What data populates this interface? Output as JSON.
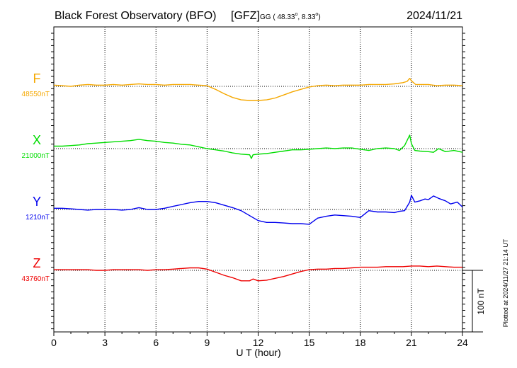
{
  "header": {
    "title": "Black Forest Observatory (BFO)",
    "institute": "[GFZ]",
    "coords_prefix": "GG ( 48.33",
    "coords_lat_deg": "o",
    "coords_mid": ",   8.33",
    "coords_lon_deg": "o",
    "coords_close": ")",
    "date": "2024/11/21"
  },
  "plotted_note": "Plotted at 2024/11/27 21:14 UT",
  "scale_label": "100 nT",
  "colors": {
    "F": "#f5a800",
    "X": "#00dd00",
    "Y": "#0000ee",
    "Z": "#ee0000",
    "frame": "#000000"
  },
  "chart_data": {
    "type": "line",
    "xlabel": "U T (hour)",
    "xlim": [
      0,
      24
    ],
    "xticks": [
      "0",
      "3",
      "6",
      "9",
      "12",
      "15",
      "18",
      "21",
      "24"
    ],
    "grid": true,
    "scale_nT": 100,
    "series": [
      {
        "name": "F",
        "baseline_label": "48550nT",
        "baseline": 48550,
        "x": [
          0,
          0.5,
          1,
          1.5,
          2,
          2.5,
          3,
          3.5,
          4,
          4.5,
          5,
          5.5,
          6,
          6.5,
          7,
          7.5,
          8,
          8.5,
          9,
          9.5,
          10,
          10.5,
          11,
          11.5,
          12,
          12.5,
          13,
          13.5,
          14,
          14.5,
          15,
          15.5,
          16,
          16.5,
          17,
          17.5,
          18,
          18.5,
          19,
          19.5,
          20,
          20.5,
          20.75,
          20.9,
          21,
          21.25,
          21.5,
          22,
          22.5,
          23,
          23.5,
          24
        ],
        "y": [
          48552,
          48551,
          48550,
          48552,
          48553,
          48552,
          48552,
          48553,
          48552,
          48553,
          48554,
          48553,
          48553,
          48552,
          48553,
          48553,
          48553,
          48552,
          48551,
          48545,
          48538,
          48532,
          48528,
          48527,
          48527,
          48528,
          48531,
          48536,
          48541,
          48545,
          48549,
          48551,
          48552,
          48551,
          48552,
          48552,
          48552,
          48553,
          48553,
          48553,
          48554,
          48556,
          48558,
          48563,
          48559,
          48553,
          48553,
          48553,
          48551,
          48552,
          48552,
          48551
        ]
      },
      {
        "name": "X",
        "baseline_label": "21000nT",
        "baseline": 21000,
        "x": [
          0,
          0.5,
          1,
          1.5,
          2,
          2.5,
          3,
          3.5,
          4,
          4.5,
          5,
          5.5,
          6,
          6.5,
          7,
          7.5,
          8,
          8.5,
          9,
          9.5,
          10,
          10.5,
          11,
          11.5,
          11.6,
          11.7,
          12,
          12.5,
          13,
          13.5,
          14,
          14.5,
          15,
          15.5,
          16,
          16.5,
          17,
          17.5,
          18,
          18.5,
          19,
          19.5,
          20,
          20.3,
          20.6,
          20.9,
          21,
          21.2,
          21.5,
          22,
          22.3,
          22.6,
          23,
          23.5,
          24
        ],
        "y": [
          21004,
          21004,
          21005,
          21006,
          21008,
          21009,
          21010,
          21011,
          21012,
          21013,
          21015,
          21013,
          21012,
          21010,
          21009,
          21007,
          21006,
          21003,
          21000,
          20998,
          20996,
          20993,
          20991,
          20990,
          20984,
          20990,
          20991,
          20992,
          20994,
          20996,
          20998,
          20998,
          20999,
          21000,
          21001,
          21000,
          21001,
          21001,
          20999,
          20997,
          21000,
          21001,
          21000,
          20997,
          21005,
          21022,
          21008,
          20997,
          20996,
          20995,
          20994,
          21000,
          20995,
          20997,
          20994
        ]
      },
      {
        "name": "Y",
        "baseline_label": "1210nT",
        "baseline": 1210,
        "x": [
          0,
          0.5,
          1,
          1.5,
          2,
          2.5,
          3,
          3.5,
          4,
          4.5,
          5,
          5.5,
          6,
          6.5,
          7,
          7.5,
          8,
          8.5,
          9,
          9.5,
          10,
          10.5,
          11,
          11.5,
          12,
          12.5,
          13,
          13.5,
          14,
          14.5,
          15,
          15.5,
          16,
          16.5,
          17,
          17.5,
          18,
          18.5,
          19,
          19.5,
          20,
          20.3,
          20.6,
          20.9,
          21,
          21.2,
          21.5,
          21.8,
          22,
          22.3,
          22.6,
          23,
          23.3,
          23.7,
          24
        ],
        "y": [
          1212,
          1212,
          1211,
          1210,
          1209,
          1210,
          1210,
          1210,
          1209,
          1210,
          1213,
          1210,
          1210,
          1212,
          1215,
          1218,
          1221,
          1223,
          1223,
          1221,
          1217,
          1213,
          1208,
          1200,
          1192,
          1189,
          1189,
          1188,
          1187,
          1187,
          1186,
          1196,
          1199,
          1201,
          1200,
          1199,
          1197,
          1208,
          1206,
          1206,
          1205,
          1207,
          1208,
          1222,
          1233,
          1222,
          1224,
          1227,
          1226,
          1232,
          1228,
          1224,
          1219,
          1222,
          1214
        ]
      },
      {
        "name": "Z",
        "baseline_label": "43760nT",
        "baseline": 43760,
        "x": [
          0,
          0.5,
          1,
          1.5,
          2,
          2.5,
          3,
          3.5,
          4,
          4.5,
          5,
          5.5,
          6,
          6.5,
          7,
          7.5,
          8,
          8.5,
          9,
          9.5,
          10,
          10.5,
          11,
          11.5,
          11.7,
          12,
          12.5,
          13,
          13.5,
          14,
          14.5,
          15,
          15.5,
          16,
          16.5,
          17,
          17.5,
          18,
          18.5,
          19,
          19.5,
          20,
          20.5,
          21,
          21.5,
          22,
          22.5,
          23,
          23.5,
          24
        ],
        "y": [
          43761,
          43761,
          43761,
          43761,
          43761,
          43760,
          43760,
          43761,
          43761,
          43761,
          43761,
          43760,
          43761,
          43761,
          43762,
          43763,
          43764,
          43764,
          43762,
          43757,
          43752,
          43748,
          43743,
          43743,
          43746,
          43743,
          43744,
          43747,
          43750,
          43754,
          43758,
          43761,
          43762,
          43762,
          43763,
          43763,
          43764,
          43765,
          43765,
          43765,
          43766,
          43766,
          43766,
          43767,
          43767,
          43766,
          43767,
          43766,
          43765,
          43765
        ]
      }
    ]
  }
}
